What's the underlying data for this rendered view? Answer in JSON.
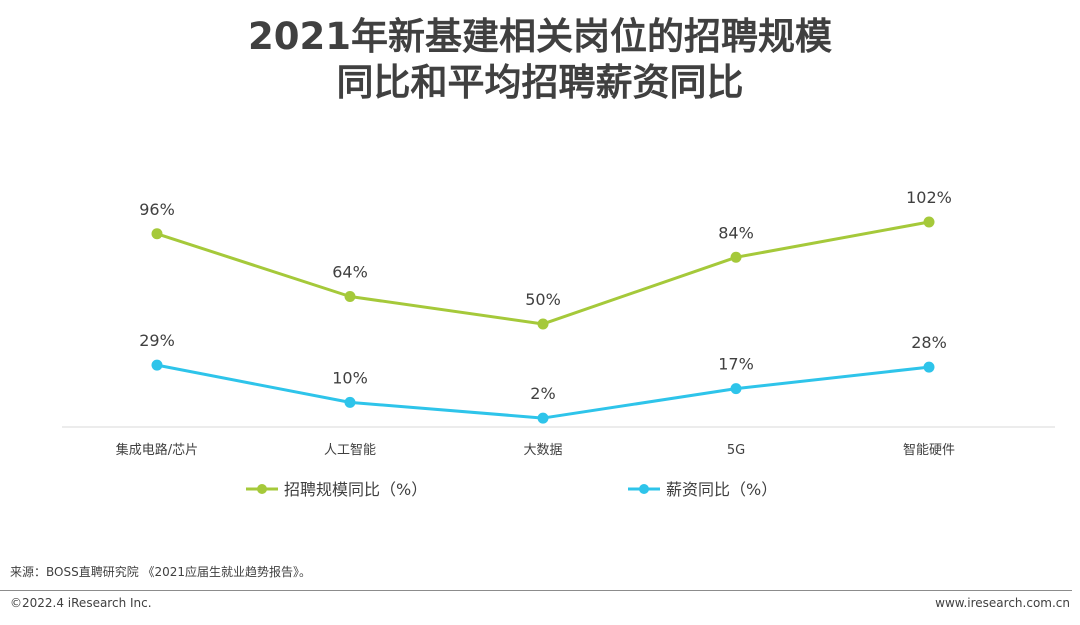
{
  "title": {
    "line1": "2021年新基建相关岗位的招聘规模",
    "line2": "同比和平均招聘薪资同比"
  },
  "chart_data": {
    "type": "line",
    "categories": [
      "集成电路/芯片",
      "人工智能",
      "大数据",
      "5G",
      "智能硬件"
    ],
    "series": [
      {
        "name": "招聘规模同比（%）",
        "values": [
          96,
          64,
          50,
          84,
          102
        ],
        "labels": [
          "96%",
          "64%",
          "50%",
          "84%",
          "102%"
        ],
        "color": "#a5c93a"
      },
      {
        "name": "薪资同比（%）",
        "values": [
          29,
          10,
          2,
          17,
          28
        ],
        "labels": [
          "29%",
          "10%",
          "2%",
          "17%",
          "28%"
        ],
        "color": "#2ec4ea"
      }
    ],
    "ylim": [
      0,
      102
    ],
    "grid": false,
    "legend": "bottom"
  },
  "source": "来源：BOSS直聘研究院 《2021应届生就业趋势报告》。",
  "copyright": "©2022.4 iResearch Inc.",
  "website": "www.iresearch.com.cn",
  "colors": {
    "text": "#404040",
    "axis": "#d9d9d9",
    "divider": "#8c8c8c"
  }
}
